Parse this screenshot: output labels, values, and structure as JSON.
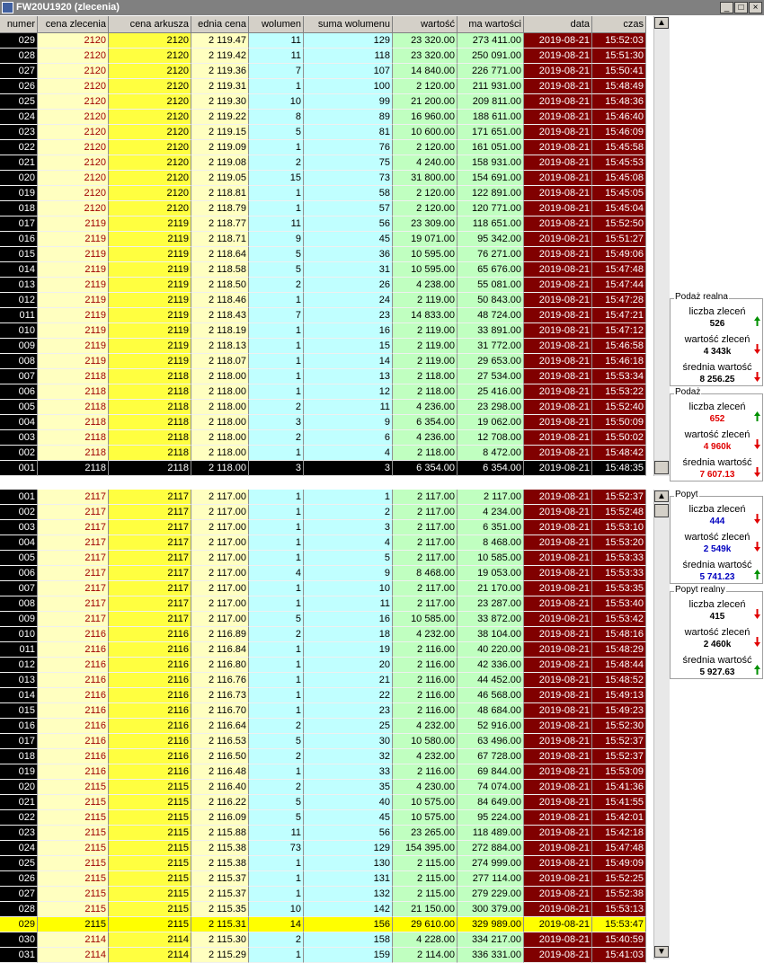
{
  "window": {
    "title": "FW20U1920 (zlecenia)"
  },
  "table": {
    "headers": [
      "numer",
      "cena zlecenia",
      "cena arkusza",
      "ednia cena",
      "wolumen",
      "suma wolumenu",
      "wartość",
      "ma wartości",
      "data",
      "czas"
    ],
    "top_rows": [
      [
        "029",
        "2120",
        "2120",
        "2 119.47",
        "11",
        "129",
        "23 320.00",
        "273 411.00",
        "2019-08-21",
        "15:52:03"
      ],
      [
        "028",
        "2120",
        "2120",
        "2 119.42",
        "11",
        "118",
        "23 320.00",
        "250 091.00",
        "2019-08-21",
        "15:51:30"
      ],
      [
        "027",
        "2120",
        "2120",
        "2 119.36",
        "7",
        "107",
        "14 840.00",
        "226 771.00",
        "2019-08-21",
        "15:50:41"
      ],
      [
        "026",
        "2120",
        "2120",
        "2 119.31",
        "1",
        "100",
        "2 120.00",
        "211 931.00",
        "2019-08-21",
        "15:48:49"
      ],
      [
        "025",
        "2120",
        "2120",
        "2 119.30",
        "10",
        "99",
        "21 200.00",
        "209 811.00",
        "2019-08-21",
        "15:48:36"
      ],
      [
        "024",
        "2120",
        "2120",
        "2 119.22",
        "8",
        "89",
        "16 960.00",
        "188 611.00",
        "2019-08-21",
        "15:46:40"
      ],
      [
        "023",
        "2120",
        "2120",
        "2 119.15",
        "5",
        "81",
        "10 600.00",
        "171 651.00",
        "2019-08-21",
        "15:46:09"
      ],
      [
        "022",
        "2120",
        "2120",
        "2 119.09",
        "1",
        "76",
        "2 120.00",
        "161 051.00",
        "2019-08-21",
        "15:45:58"
      ],
      [
        "021",
        "2120",
        "2120",
        "2 119.08",
        "2",
        "75",
        "4 240.00",
        "158 931.00",
        "2019-08-21",
        "15:45:53"
      ],
      [
        "020",
        "2120",
        "2120",
        "2 119.05",
        "15",
        "73",
        "31 800.00",
        "154 691.00",
        "2019-08-21",
        "15:45:08"
      ],
      [
        "019",
        "2120",
        "2120",
        "2 118.81",
        "1",
        "58",
        "2 120.00",
        "122 891.00",
        "2019-08-21",
        "15:45:05"
      ],
      [
        "018",
        "2120",
        "2120",
        "2 118.79",
        "1",
        "57",
        "2 120.00",
        "120 771.00",
        "2019-08-21",
        "15:45:04"
      ],
      [
        "017",
        "2119",
        "2119",
        "2 118.77",
        "11",
        "56",
        "23 309.00",
        "118 651.00",
        "2019-08-21",
        "15:52:50"
      ],
      [
        "016",
        "2119",
        "2119",
        "2 118.71",
        "9",
        "45",
        "19 071.00",
        "95 342.00",
        "2019-08-21",
        "15:51:27"
      ],
      [
        "015",
        "2119",
        "2119",
        "2 118.64",
        "5",
        "36",
        "10 595.00",
        "76 271.00",
        "2019-08-21",
        "15:49:06"
      ],
      [
        "014",
        "2119",
        "2119",
        "2 118.58",
        "5",
        "31",
        "10 595.00",
        "65 676.00",
        "2019-08-21",
        "15:47:48"
      ],
      [
        "013",
        "2119",
        "2119",
        "2 118.50",
        "2",
        "26",
        "4 238.00",
        "55 081.00",
        "2019-08-21",
        "15:47:44"
      ],
      [
        "012",
        "2119",
        "2119",
        "2 118.46",
        "1",
        "24",
        "2 119.00",
        "50 843.00",
        "2019-08-21",
        "15:47:28"
      ],
      [
        "011",
        "2119",
        "2119",
        "2 118.43",
        "7",
        "23",
        "14 833.00",
        "48 724.00",
        "2019-08-21",
        "15:47:21"
      ],
      [
        "010",
        "2119",
        "2119",
        "2 118.19",
        "1",
        "16",
        "2 119.00",
        "33 891.00",
        "2019-08-21",
        "15:47:12"
      ],
      [
        "009",
        "2119",
        "2119",
        "2 118.13",
        "1",
        "15",
        "2 119.00",
        "31 772.00",
        "2019-08-21",
        "15:46:58"
      ],
      [
        "008",
        "2119",
        "2119",
        "2 118.07",
        "1",
        "14",
        "2 119.00",
        "29 653.00",
        "2019-08-21",
        "15:46:18"
      ],
      [
        "007",
        "2118",
        "2118",
        "2 118.00",
        "1",
        "13",
        "2 118.00",
        "27 534.00",
        "2019-08-21",
        "15:53:34"
      ],
      [
        "006",
        "2118",
        "2118",
        "2 118.00",
        "1",
        "12",
        "2 118.00",
        "25 416.00",
        "2019-08-21",
        "15:53:22"
      ],
      [
        "005",
        "2118",
        "2118",
        "2 118.00",
        "2",
        "11",
        "4 236.00",
        "23 298.00",
        "2019-08-21",
        "15:52:40"
      ],
      [
        "004",
        "2118",
        "2118",
        "2 118.00",
        "3",
        "9",
        "6 354.00",
        "19 062.00",
        "2019-08-21",
        "15:50:09"
      ],
      [
        "003",
        "2118",
        "2118",
        "2 118.00",
        "2",
        "6",
        "4 236.00",
        "12 708.00",
        "2019-08-21",
        "15:50:02"
      ],
      [
        "002",
        "2118",
        "2118",
        "2 118.00",
        "1",
        "4",
        "2 118.00",
        "8 472.00",
        "2019-08-21",
        "15:48:42"
      ],
      [
        "001",
        "2118",
        "2118",
        "2 118.00",
        "3",
        "3",
        "6 354.00",
        "6 354.00",
        "2019-08-21",
        "15:48:35"
      ]
    ],
    "bottom_rows": [
      [
        "001",
        "2117",
        "2117",
        "2 117.00",
        "1",
        "1",
        "2 117.00",
        "2 117.00",
        "2019-08-21",
        "15:52:37"
      ],
      [
        "002",
        "2117",
        "2117",
        "2 117.00",
        "1",
        "2",
        "2 117.00",
        "4 234.00",
        "2019-08-21",
        "15:52:48"
      ],
      [
        "003",
        "2117",
        "2117",
        "2 117.00",
        "1",
        "3",
        "2 117.00",
        "6 351.00",
        "2019-08-21",
        "15:53:10"
      ],
      [
        "004",
        "2117",
        "2117",
        "2 117.00",
        "1",
        "4",
        "2 117.00",
        "8 468.00",
        "2019-08-21",
        "15:53:20"
      ],
      [
        "005",
        "2117",
        "2117",
        "2 117.00",
        "1",
        "5",
        "2 117.00",
        "10 585.00",
        "2019-08-21",
        "15:53:33"
      ],
      [
        "006",
        "2117",
        "2117",
        "2 117.00",
        "4",
        "9",
        "8 468.00",
        "19 053.00",
        "2019-08-21",
        "15:53:33"
      ],
      [
        "007",
        "2117",
        "2117",
        "2 117.00",
        "1",
        "10",
        "2 117.00",
        "21 170.00",
        "2019-08-21",
        "15:53:35"
      ],
      [
        "008",
        "2117",
        "2117",
        "2 117.00",
        "1",
        "11",
        "2 117.00",
        "23 287.00",
        "2019-08-21",
        "15:53:40"
      ],
      [
        "009",
        "2117",
        "2117",
        "2 117.00",
        "5",
        "16",
        "10 585.00",
        "33 872.00",
        "2019-08-21",
        "15:53:42"
      ],
      [
        "010",
        "2116",
        "2116",
        "2 116.89",
        "2",
        "18",
        "4 232.00",
        "38 104.00",
        "2019-08-21",
        "15:48:16"
      ],
      [
        "011",
        "2116",
        "2116",
        "2 116.84",
        "1",
        "19",
        "2 116.00",
        "40 220.00",
        "2019-08-21",
        "15:48:29"
      ],
      [
        "012",
        "2116",
        "2116",
        "2 116.80",
        "1",
        "20",
        "2 116.00",
        "42 336.00",
        "2019-08-21",
        "15:48:44"
      ],
      [
        "013",
        "2116",
        "2116",
        "2 116.76",
        "1",
        "21",
        "2 116.00",
        "44 452.00",
        "2019-08-21",
        "15:48:52"
      ],
      [
        "014",
        "2116",
        "2116",
        "2 116.73",
        "1",
        "22",
        "2 116.00",
        "46 568.00",
        "2019-08-21",
        "15:49:13"
      ],
      [
        "015",
        "2116",
        "2116",
        "2 116.70",
        "1",
        "23",
        "2 116.00",
        "48 684.00",
        "2019-08-21",
        "15:49:23"
      ],
      [
        "016",
        "2116",
        "2116",
        "2 116.64",
        "2",
        "25",
        "4 232.00",
        "52 916.00",
        "2019-08-21",
        "15:52:30"
      ],
      [
        "017",
        "2116",
        "2116",
        "2 116.53",
        "5",
        "30",
        "10 580.00",
        "63 496.00",
        "2019-08-21",
        "15:52:37"
      ],
      [
        "018",
        "2116",
        "2116",
        "2 116.50",
        "2",
        "32",
        "4 232.00",
        "67 728.00",
        "2019-08-21",
        "15:52:37"
      ],
      [
        "019",
        "2116",
        "2116",
        "2 116.48",
        "1",
        "33",
        "2 116.00",
        "69 844.00",
        "2019-08-21",
        "15:53:09"
      ],
      [
        "020",
        "2115",
        "2115",
        "2 116.40",
        "2",
        "35",
        "4 230.00",
        "74 074.00",
        "2019-08-21",
        "15:41:36"
      ],
      [
        "021",
        "2115",
        "2115",
        "2 116.22",
        "5",
        "40",
        "10 575.00",
        "84 649.00",
        "2019-08-21",
        "15:41:55"
      ],
      [
        "022",
        "2115",
        "2115",
        "2 116.09",
        "5",
        "45",
        "10 575.00",
        "95 224.00",
        "2019-08-21",
        "15:42:01"
      ],
      [
        "023",
        "2115",
        "2115",
        "2 115.88",
        "11",
        "56",
        "23 265.00",
        "118 489.00",
        "2019-08-21",
        "15:42:18"
      ],
      [
        "024",
        "2115",
        "2115",
        "2 115.38",
        "73",
        "129",
        "154 395.00",
        "272 884.00",
        "2019-08-21",
        "15:47:48"
      ],
      [
        "025",
        "2115",
        "2115",
        "2 115.38",
        "1",
        "130",
        "2 115.00",
        "274 999.00",
        "2019-08-21",
        "15:49:09"
      ],
      [
        "026",
        "2115",
        "2115",
        "2 115.37",
        "1",
        "131",
        "2 115.00",
        "277 114.00",
        "2019-08-21",
        "15:52:25"
      ],
      [
        "027",
        "2115",
        "2115",
        "2 115.37",
        "1",
        "132",
        "2 115.00",
        "279 229.00",
        "2019-08-21",
        "15:52:38"
      ],
      [
        "028",
        "2115",
        "2115",
        "2 115.35",
        "10",
        "142",
        "21 150.00",
        "300 379.00",
        "2019-08-21",
        "15:53:13"
      ],
      [
        "029",
        "2115",
        "2115",
        "2 115.31",
        "14",
        "156",
        "29 610.00",
        "329 989.00",
        "2019-08-21",
        "15:53:47"
      ],
      [
        "030",
        "2114",
        "2114",
        "2 115.30",
        "2",
        "158",
        "4 228.00",
        "334 217.00",
        "2019-08-21",
        "15:40:59"
      ],
      [
        "031",
        "2114",
        "2114",
        "2 115.29",
        "1",
        "159",
        "2 114.00",
        "336 331.00",
        "2019-08-21",
        "15:41:03"
      ]
    ]
  },
  "panels": [
    {
      "title": "Podaż realna",
      "items": [
        {
          "label": "liczba zleceń",
          "value": "526",
          "color": "#000000",
          "trend": "up"
        },
        {
          "label": "wartość zleceń",
          "value": "4 343k",
          "color": "#000000",
          "trend": "down"
        },
        {
          "label": "średnia wartość",
          "value": "8 256.25",
          "color": "#000000",
          "trend": "down"
        }
      ]
    },
    {
      "title": "Podaż",
      "items": [
        {
          "label": "liczba zleceń",
          "value": "652",
          "color": "#e00000",
          "trend": "up"
        },
        {
          "label": "wartość zleceń",
          "value": "4 960k",
          "color": "#e00000",
          "trend": "down"
        },
        {
          "label": "średnia wartość",
          "value": "7 607.13",
          "color": "#e00000",
          "trend": "down"
        }
      ]
    },
    {
      "title": "Popyt",
      "items": [
        {
          "label": "liczba zleceń",
          "value": "444",
          "color": "#0000c0",
          "trend": "down"
        },
        {
          "label": "wartość zleceń",
          "value": "2 549k",
          "color": "#0000c0",
          "trend": "down"
        },
        {
          "label": "średnia wartość",
          "value": "5 741.23",
          "color": "#0000c0",
          "trend": "up"
        }
      ]
    },
    {
      "title": "Popyt realny",
      "items": [
        {
          "label": "liczba zleceń",
          "value": "415",
          "color": "#000000",
          "trend": "down"
        },
        {
          "label": "wartość zleceń",
          "value": "2 460k",
          "color": "#000000",
          "trend": "down"
        },
        {
          "label": "średnia wartość",
          "value": "5 927.63",
          "color": "#000000",
          "trend": "up"
        }
      ]
    }
  ]
}
